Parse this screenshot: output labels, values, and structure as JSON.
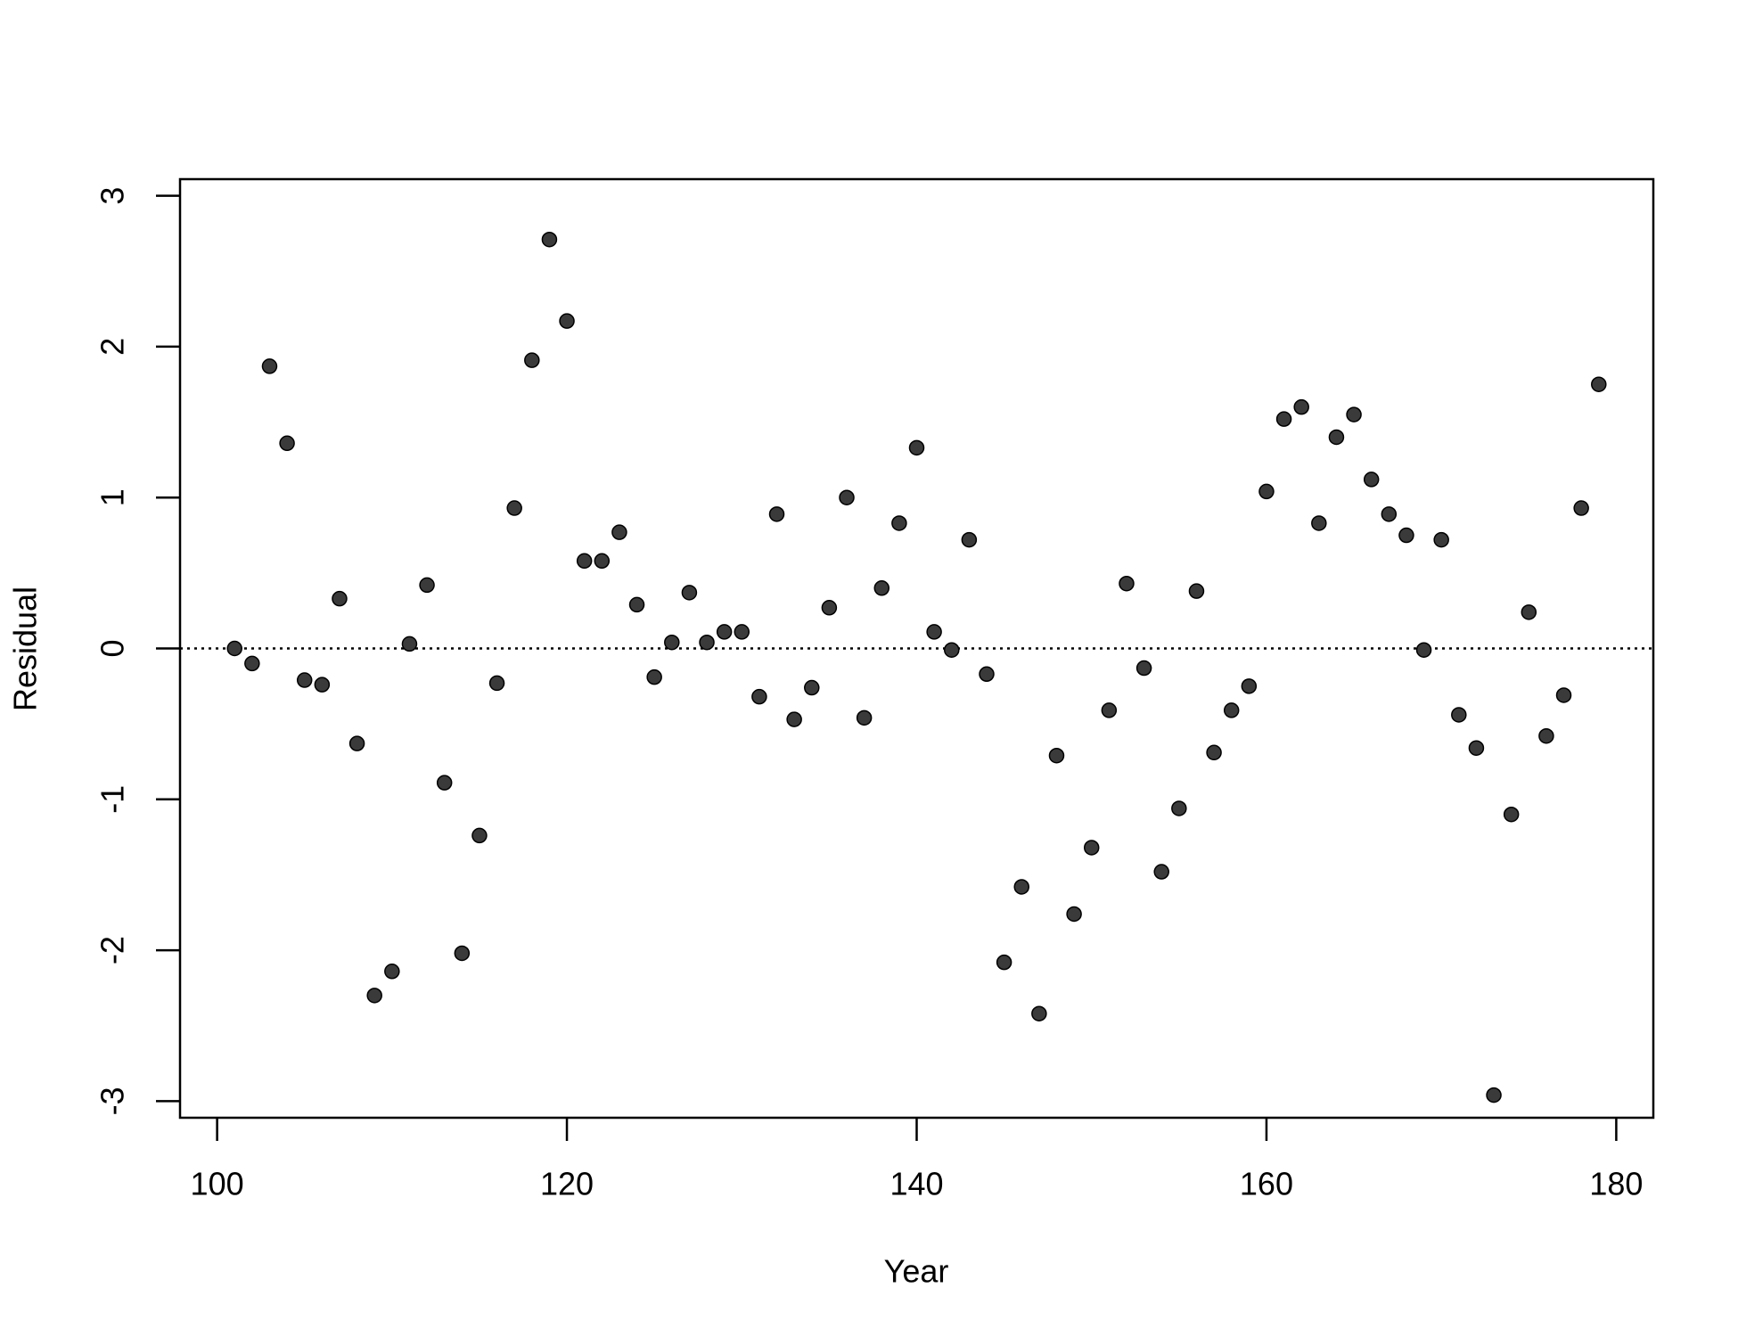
{
  "chart_data": {
    "type": "scatter",
    "x_label": "Year",
    "y_label": "Residual",
    "x": [
      101,
      102,
      103,
      104,
      105,
      106,
      107,
      108,
      109,
      110,
      111,
      112,
      113,
      114,
      115,
      116,
      117,
      118,
      119,
      120,
      121,
      122,
      123,
      124,
      125,
      126,
      127,
      128,
      129,
      130,
      131,
      132,
      133,
      134,
      135,
      136,
      137,
      138,
      139,
      140,
      141,
      142,
      143,
      144,
      145,
      146,
      147,
      148,
      149,
      150,
      151,
      152,
      153,
      154,
      155,
      156,
      157,
      158,
      159,
      160,
      161,
      162,
      163,
      164,
      165,
      166,
      167,
      168,
      169,
      170,
      171,
      172,
      173,
      174,
      175,
      176,
      177,
      178,
      179
    ],
    "values": [
      0.0,
      -0.1,
      1.87,
      1.36,
      -0.21,
      -0.24,
      0.33,
      -0.63,
      -2.3,
      -2.14,
      0.03,
      0.42,
      -0.89,
      -2.02,
      -1.24,
      -0.23,
      0.93,
      1.91,
      2.71,
      2.17,
      0.58,
      0.58,
      0.77,
      0.29,
      -0.19,
      0.04,
      0.37,
      0.04,
      0.11,
      0.11,
      -0.32,
      0.89,
      -0.47,
      -0.26,
      0.27,
      1.0,
      -0.46,
      0.4,
      0.83,
      1.33,
      0.11,
      -0.01,
      0.72,
      -0.17,
      -2.08,
      -1.58,
      -2.42,
      -0.71,
      -1.76,
      -1.32,
      -0.41,
      0.43,
      -0.13,
      -1.48,
      -1.06,
      0.38,
      -0.69,
      -0.41,
      -0.25,
      1.04,
      1.52,
      1.6,
      0.83,
      1.4,
      1.55,
      1.12,
      0.89,
      0.75,
      -0.01,
      0.72,
      -0.44,
      -0.66,
      -2.96,
      -1.1,
      0.24,
      -0.58,
      -0.31,
      0.93,
      1.75
    ],
    "color": "#3a3a3a",
    "xlim": [
      97.88,
      182.12
    ],
    "ylim": [
      -3.11,
      3.11
    ],
    "xticks": [
      100,
      120,
      140,
      160,
      180
    ],
    "yticks": [
      -3,
      -2,
      -1,
      0,
      1,
      2,
      3
    ],
    "reference_line": 0
  }
}
